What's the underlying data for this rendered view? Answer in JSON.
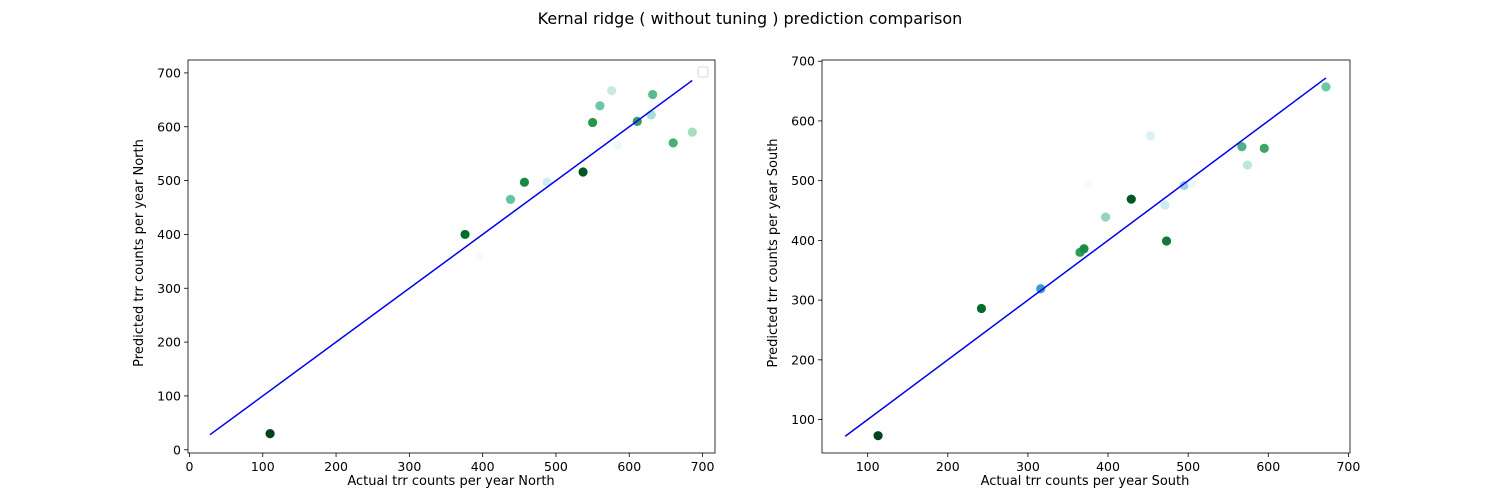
{
  "figure": {
    "title": "Kernal ridge ( without tuning ) prediction comparison"
  },
  "chart_data": [
    {
      "type": "scatter",
      "title": "",
      "xlabel": "Actual trr counts per year North",
      "ylabel": "Predicted trr counts per year North",
      "xlim": [
        -2,
        717
      ],
      "ylim": [
        -6,
        724
      ],
      "xticks": [
        0,
        100,
        200,
        300,
        400,
        500,
        600,
        700
      ],
      "yticks": [
        0,
        100,
        200,
        300,
        400,
        500,
        600,
        700
      ],
      "legend": "top-right",
      "fit_line": {
        "color": "#0000ee",
        "x": [
          28,
          686
        ],
        "y": [
          28,
          686
        ]
      },
      "points": [
        {
          "x": 110,
          "y": 30,
          "color": "#00441b"
        },
        {
          "x": 376,
          "y": 400,
          "color": "#006d2c"
        },
        {
          "x": 395,
          "y": 358,
          "color": "#f5fbfd"
        },
        {
          "x": 438,
          "y": 465,
          "color": "#66c2a4"
        },
        {
          "x": 457,
          "y": 497,
          "color": "#1a8a42"
        },
        {
          "x": 488,
          "y": 497,
          "color": "#d0eef2"
        },
        {
          "x": 537,
          "y": 516,
          "color": "#00571f"
        },
        {
          "x": 550,
          "y": 608,
          "color": "#23974a"
        },
        {
          "x": 560,
          "y": 639,
          "color": "#6cc7a7"
        },
        {
          "x": 576,
          "y": 667,
          "color": "#c7eadf"
        },
        {
          "x": 584,
          "y": 565,
          "color": "#eef8fb"
        },
        {
          "x": 611,
          "y": 610,
          "color": "#2f9a6d"
        },
        {
          "x": 630,
          "y": 622,
          "color": "#a8ddd9"
        },
        {
          "x": 632,
          "y": 660,
          "color": "#5bbb8f"
        },
        {
          "x": 660,
          "y": 570,
          "color": "#45b170"
        },
        {
          "x": 686,
          "y": 590,
          "color": "#a6dec2"
        }
      ]
    },
    {
      "type": "scatter",
      "title": "",
      "xlabel": "Actual trr counts per year South",
      "ylabel": "Predicted trr counts per year South",
      "xlim": [
        43,
        702
      ],
      "ylim": [
        44,
        702
      ],
      "xticks": [
        100,
        200,
        300,
        400,
        500,
        600,
        700
      ],
      "yticks": [
        100,
        200,
        300,
        400,
        500,
        600,
        700
      ],
      "fit_line": {
        "color": "#0000ee",
        "x": [
          72,
          672
        ],
        "y": [
          72,
          672
        ]
      },
      "points": [
        {
          "x": 113,
          "y": 73,
          "color": "#00441b"
        },
        {
          "x": 242,
          "y": 286,
          "color": "#006d2c"
        },
        {
          "x": 316,
          "y": 319,
          "color": "#3a9fc2"
        },
        {
          "x": 365,
          "y": 380,
          "color": "#2e9b57"
        },
        {
          "x": 370,
          "y": 386,
          "color": "#1e8a44"
        },
        {
          "x": 376,
          "y": 492,
          "color": "#f5fbfd"
        },
        {
          "x": 397,
          "y": 439,
          "color": "#96d2bc"
        },
        {
          "x": 429,
          "y": 469,
          "color": "#00571f"
        },
        {
          "x": 453,
          "y": 575,
          "color": "#dcf1f6"
        },
        {
          "x": 471,
          "y": 459,
          "color": "#cdebf0"
        },
        {
          "x": 473,
          "y": 399,
          "color": "#127a36"
        },
        {
          "x": 495,
          "y": 492,
          "color": "#9fcfe6"
        },
        {
          "x": 505,
          "y": 495,
          "color": "#eef8fb"
        },
        {
          "x": 567,
          "y": 557,
          "color": "#4fb08a"
        },
        {
          "x": 574,
          "y": 526,
          "color": "#bde7d8"
        },
        {
          "x": 595,
          "y": 554,
          "color": "#3ea468"
        },
        {
          "x": 672,
          "y": 657,
          "color": "#6cc7a7"
        }
      ]
    }
  ]
}
